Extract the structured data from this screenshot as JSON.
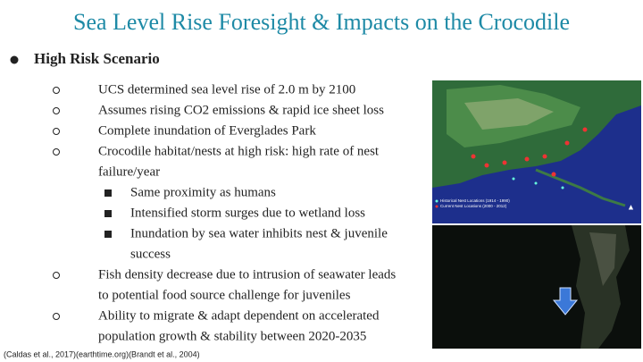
{
  "title": "Sea Level Rise Foresight & Impacts on the Crocodile",
  "heading": "High Risk Scenario",
  "bullets": [
    {
      "lines": [
        "UCS determined sea level rise of 2.0 m by 2100"
      ]
    },
    {
      "lines": [
        "Assumes rising CO2 emissions & rapid ice sheet loss"
      ]
    },
    {
      "lines": [
        "Complete inundation of Everglades Park"
      ]
    },
    {
      "lines": [
        "Crocodile habitat/nests at high risk: high rate of nest",
        "failure/year"
      ],
      "sub": [
        {
          "lines": [
            "Same proximity as humans"
          ]
        },
        {
          "lines": [
            "Intensified storm surges due to wetland loss"
          ]
        },
        {
          "lines": [
            "Inundation by sea water inhibits nest & juvenile",
            "success"
          ]
        }
      ]
    },
    {
      "lines": [
        "Fish density decrease due to intrusion of seawater  leads",
        "to potential food source challenge for juveniles"
      ]
    },
    {
      "lines": [
        "Ability to migrate & adapt dependent on accelerated",
        "population growth & stability between 2020-2035"
      ]
    }
  ],
  "citation": "(Caldas et al., 2017)(earthtime.org)(Brandt et al., 2004)",
  "map_legend": [
    "Historical Nest Locations (1914 - 1990)",
    "Current Nest Locations (2000 - 2012)"
  ]
}
